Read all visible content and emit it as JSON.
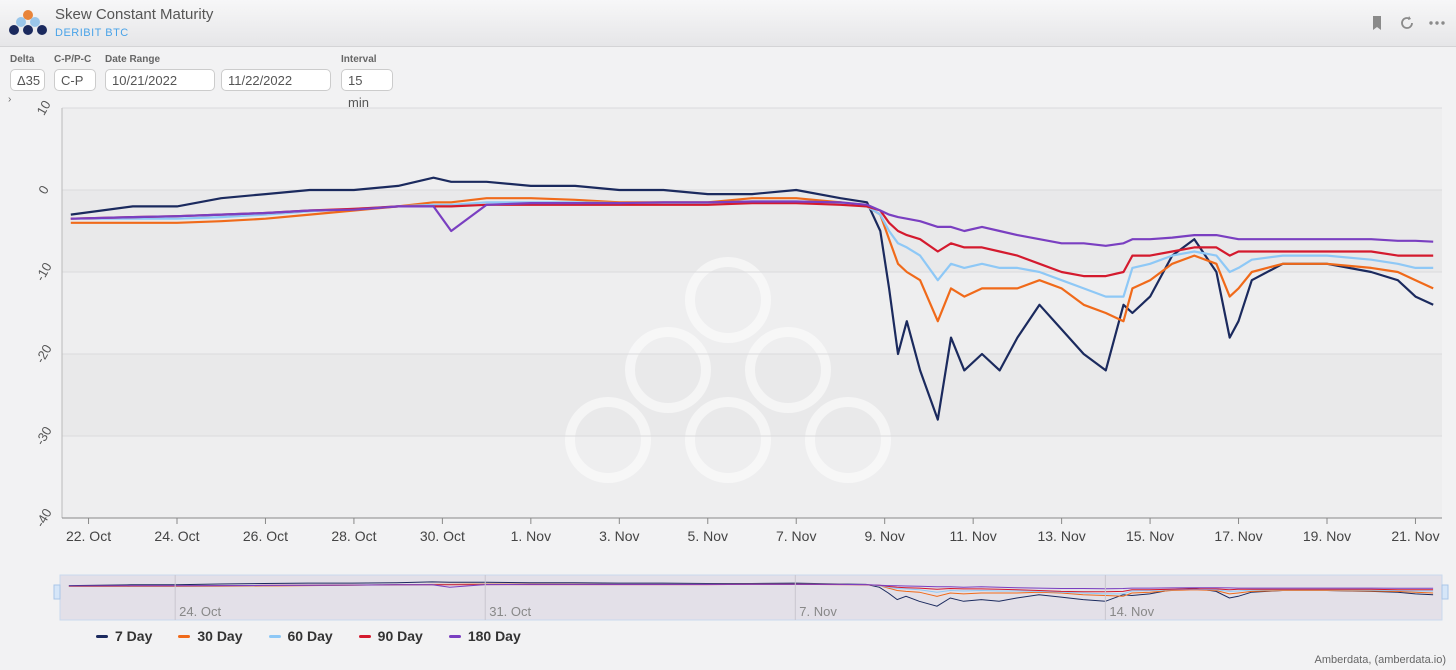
{
  "header": {
    "title": "Skew Constant Maturity",
    "subtitle": "DERIBIT BTC"
  },
  "controls": {
    "delta": {
      "label": "Delta",
      "value": "Δ35"
    },
    "cp": {
      "label": "C-P/P-C",
      "value": "C-P"
    },
    "date_range": {
      "label": "Date Range",
      "start": "10/21/2022",
      "end": "11/22/2022"
    },
    "interval": {
      "label": "Interval",
      "value": "15 min"
    }
  },
  "icons": {
    "bookmark": "bookmark-icon",
    "refresh": "refresh-icon",
    "more": "more-icon",
    "expand": "chevron-right-icon"
  },
  "navigator_ticks": [
    "24. Oct",
    "31. Oct",
    "7. Nov",
    "14. Nov"
  ],
  "credit": "Amberdata, (amberdata.io)",
  "chart_data": {
    "type": "line",
    "title": "",
    "xlabel": "",
    "ylabel": "",
    "ylim": [
      -40,
      10
    ],
    "yticks": [
      10,
      0,
      -10,
      -20,
      -30,
      -40
    ],
    "x_tick_labels": [
      "22. Oct",
      "24. Oct",
      "26. Oct",
      "28. Oct",
      "30. Oct",
      "1. Nov",
      "3. Nov",
      "5. Nov",
      "7. Nov",
      "9. Nov",
      "11. Nov",
      "13. Nov",
      "15. Nov",
      "17. Nov",
      "19. Nov",
      "21. Nov"
    ],
    "x_tick_days": [
      1,
      3,
      5,
      7,
      9,
      11,
      13,
      15,
      17,
      19,
      21,
      23,
      25,
      27,
      29,
      31
    ],
    "x": [
      0.6,
      2,
      3,
      4,
      5,
      6,
      7,
      8,
      8.8,
      9.2,
      10,
      11,
      12,
      13,
      14,
      15,
      16,
      17,
      18,
      18.6,
      18.9,
      19.1,
      19.3,
      19.5,
      19.8,
      20.2,
      20.5,
      20.8,
      21.2,
      21.6,
      22,
      22.5,
      23,
      23.5,
      24,
      24.4,
      24.6,
      25,
      25.5,
      26,
      26.5,
      26.8,
      27,
      27.3,
      28,
      29,
      30,
      30.6,
      31,
      31.4
    ],
    "legend": "bottom",
    "grid": true,
    "series": [
      {
        "name": "7 Day",
        "color": "#1b2a5e",
        "values": [
          -3,
          -2,
          -2,
          -1,
          -0.5,
          0,
          0,
          0.5,
          1.5,
          1,
          1,
          0.5,
          0.5,
          0,
          0,
          -0.5,
          -0.5,
          0,
          -1,
          -1.5,
          -5,
          -12,
          -20,
          -16,
          -22,
          -28,
          -18,
          -22,
          -20,
          -22,
          -18,
          -14,
          -17,
          -20,
          -22,
          -14,
          -15,
          -13,
          -8,
          -6,
          -10,
          -18,
          -16,
          -11,
          -9,
          -9,
          -10,
          -11,
          -13,
          -14
        ]
      },
      {
        "name": "30 Day",
        "color": "#f06a1a",
        "values": [
          -4,
          -4,
          -4,
          -3.8,
          -3.5,
          -3,
          -2.5,
          -2,
          -1.5,
          -1.5,
          -1,
          -1,
          -1.2,
          -1.5,
          -1.5,
          -1.5,
          -1,
          -1,
          -1.5,
          -2,
          -3,
          -6,
          -9,
          -10,
          -11,
          -16,
          -12,
          -13,
          -12,
          -12,
          -12,
          -11,
          -12,
          -14,
          -15,
          -16,
          -12,
          -11,
          -9,
          -8,
          -9,
          -13,
          -12,
          -10,
          -9,
          -9,
          -9.5,
          -10,
          -11,
          -12
        ]
      },
      {
        "name": "60 Day",
        "color": "#8ec8f6",
        "values": [
          -3.5,
          -3.5,
          -3.5,
          -3.3,
          -3,
          -2.6,
          -2.3,
          -2,
          -1.8,
          -1.8,
          -1.5,
          -1.5,
          -1.5,
          -1.6,
          -1.6,
          -1.6,
          -1.4,
          -1.4,
          -1.6,
          -2,
          -3,
          -5,
          -6.5,
          -7,
          -8,
          -11,
          -9,
          -9.5,
          -9,
          -9.5,
          -9.5,
          -10,
          -11,
          -12,
          -13,
          -13,
          -9.5,
          -9,
          -8,
          -7.5,
          -8,
          -10,
          -9.5,
          -8.5,
          -8,
          -8,
          -8.5,
          -9,
          -9.5,
          -9.5
        ]
      },
      {
        "name": "90 Day",
        "color": "#d41a2e",
        "values": [
          -3.5,
          -3.3,
          -3.2,
          -3,
          -2.8,
          -2.5,
          -2.3,
          -2,
          -2,
          -2,
          -1.8,
          -1.8,
          -1.8,
          -1.8,
          -1.8,
          -1.8,
          -1.6,
          -1.6,
          -1.8,
          -2,
          -2.5,
          -4,
          -5,
          -5.5,
          -6,
          -7.5,
          -6.5,
          -7,
          -7,
          -7.5,
          -8,
          -9,
          -10,
          -10.5,
          -10.5,
          -10,
          -8,
          -8,
          -7.5,
          -7,
          -7,
          -8,
          -7.5,
          -7.5,
          -7.5,
          -7.5,
          -7.5,
          -8,
          -8,
          -8
        ]
      },
      {
        "name": "180 Day",
        "color": "#7a3fc1",
        "values": [
          -3.5,
          -3.3,
          -3.2,
          -3,
          -2.8,
          -2.5,
          -2.4,
          -2,
          -2,
          -5,
          -1.8,
          -1.6,
          -1.6,
          -1.6,
          -1.5,
          -1.5,
          -1.4,
          -1.4,
          -1.5,
          -1.8,
          -2.5,
          -3,
          -3.3,
          -3.5,
          -3.8,
          -4.5,
          -4.5,
          -5,
          -4.5,
          -5,
          -5.5,
          -6,
          -6.5,
          -6.5,
          -6.8,
          -6.5,
          -6,
          -6,
          -5.8,
          -5.5,
          -5.5,
          -5.8,
          -6,
          -6,
          -6,
          -6,
          -6,
          -6.2,
          -6.2,
          -6.3
        ]
      }
    ]
  }
}
